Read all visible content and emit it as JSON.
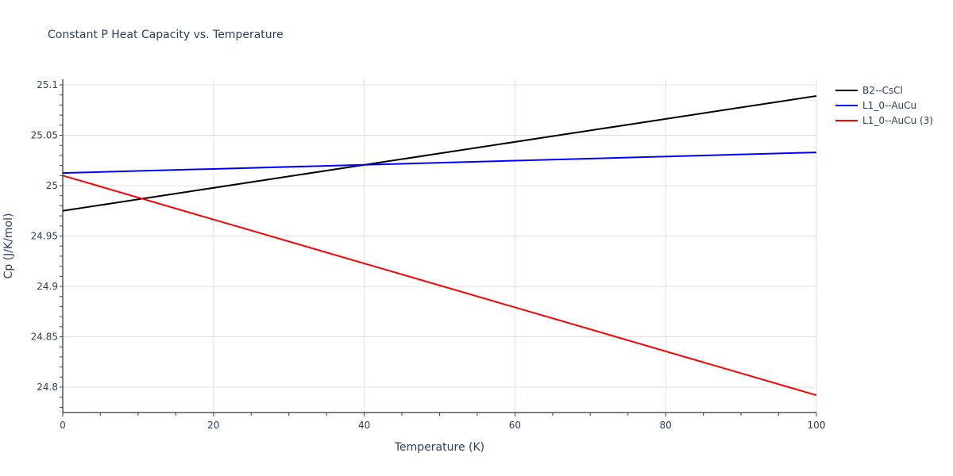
{
  "title": "Constant P Heat Capacity vs. Temperature",
  "chart_data": {
    "type": "line",
    "title": "Constant P Heat Capacity vs. Temperature",
    "xlabel": "Temperature (K)",
    "ylabel": "Cp (J/K/mol)",
    "xlim": [
      0,
      100
    ],
    "ylim": [
      24.775,
      25.105
    ],
    "xticks": [
      0,
      20,
      40,
      60,
      80,
      100
    ],
    "yticks": [
      24.8,
      24.85,
      24.9,
      24.95,
      25,
      25.05,
      25.1
    ],
    "ytick_labels": [
      "24.8",
      "24.85",
      "24.9",
      "24.95",
      "25",
      "25.05",
      "25.1"
    ],
    "grid": true,
    "legend_position": "right",
    "series": [
      {
        "name": "B2--CsCl",
        "color": "#000000",
        "x": [
          0,
          100
        ],
        "y": [
          24.975,
          25.089
        ]
      },
      {
        "name": "L1_0--AuCu",
        "color": "#0000ff",
        "x": [
          0,
          100
        ],
        "y": [
          25.0125,
          25.033
        ]
      },
      {
        "name": "L1_0--AuCu (3)",
        "color": "#ff0000",
        "x": [
          0,
          100
        ],
        "y": [
          25.01,
          24.792
        ]
      }
    ]
  },
  "legend": {
    "items": [
      {
        "label": "B2--CsCl",
        "color": "#000000"
      },
      {
        "label": "L1_0--AuCu",
        "color": "#0000ff"
      },
      {
        "label": "L1_0--AuCu (3)",
        "color": "#ff0000"
      }
    ]
  }
}
